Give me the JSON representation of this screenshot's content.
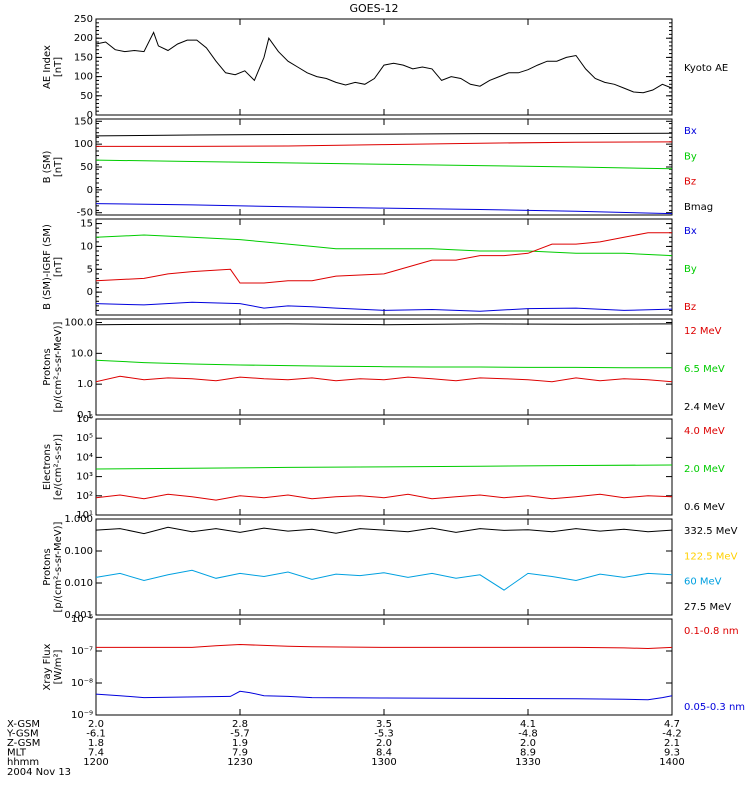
{
  "title": "GOES-12",
  "date": "2004 Nov 13",
  "colors": {
    "black": "#000000",
    "red": "#dd0000",
    "green": "#00cc00",
    "blue": "#0000dd",
    "yellow": "#ffd000",
    "cyan": "#00a0e0"
  },
  "time_axis": {
    "ticks": [
      "1200",
      "1230",
      "1300",
      "1330",
      "1400"
    ],
    "rows": [
      {
        "label": "X-GSM",
        "values": [
          "2.0",
          "2.8",
          "3.5",
          "4.1",
          "4.7"
        ]
      },
      {
        "label": "Y-GSM",
        "values": [
          "-6.1",
          "-5.7",
          "-5.3",
          "-4.8",
          "-4.2"
        ]
      },
      {
        "label": "Z-GSM",
        "values": [
          "1.8",
          "1.9",
          "2.0",
          "2.0",
          "2.1"
        ]
      },
      {
        "label": "MLT",
        "values": [
          "7.4",
          "7.9",
          "8.4",
          "8.9",
          "9.3"
        ]
      },
      {
        "label": "hhmm",
        "values": [
          "1200",
          "1230",
          "1300",
          "1330",
          "1400"
        ]
      }
    ]
  },
  "chart_data": [
    {
      "type": "line",
      "ylabel": [
        "AE Index",
        "[nT]"
      ],
      "ylim": [
        0,
        250
      ],
      "scale": "linear",
      "ticks": [
        "0",
        "50",
        "100",
        "150",
        "200",
        "250"
      ],
      "tick_values": [
        0,
        50,
        100,
        150,
        200,
        250
      ],
      "series": [
        {
          "name": "Kyoto AE",
          "color": "#000000",
          "x": [
            0,
            2,
            4,
            6,
            8,
            10,
            12,
            13,
            15,
            17,
            19,
            21,
            23,
            25,
            27,
            29,
            31,
            33,
            35,
            36,
            38,
            40,
            42,
            44,
            46,
            48,
            50,
            52,
            54,
            56,
            58,
            60,
            62,
            64,
            66,
            68,
            70,
            72,
            74,
            76,
            78,
            80,
            82,
            84,
            86,
            88,
            90,
            92,
            94,
            96,
            98,
            100,
            102,
            104,
            106,
            108,
            110,
            112,
            114,
            116,
            118,
            120
          ],
          "y": [
            185,
            190,
            170,
            165,
            168,
            165,
            215,
            180,
            168,
            185,
            195,
            195,
            175,
            140,
            110,
            105,
            115,
            90,
            150,
            200,
            165,
            140,
            125,
            110,
            100,
            95,
            85,
            78,
            85,
            80,
            95,
            130,
            135,
            130,
            120,
            125,
            120,
            90,
            100,
            95,
            80,
            75,
            90,
            100,
            110,
            110,
            118,
            130,
            140,
            140,
            150,
            155,
            120,
            95,
            85,
            80,
            70,
            60,
            58,
            65,
            80,
            70
          ]
        }
      ]
    },
    {
      "type": "line",
      "ylabel": [
        "B (SM)",
        "[nT]"
      ],
      "ylim": [
        -55,
        155
      ],
      "scale": "linear",
      "ticks": [
        "-50",
        "0",
        "50",
        "100",
        "150"
      ],
      "tick_values": [
        -50,
        0,
        50,
        100,
        150
      ],
      "series": [
        {
          "name": "Bx",
          "color": "#0000dd",
          "x": [
            0,
            20,
            40,
            60,
            80,
            100,
            120
          ],
          "y": [
            -30,
            -33,
            -37,
            -40,
            -43,
            -47,
            -52
          ]
        },
        {
          "name": "By",
          "color": "#00cc00",
          "x": [
            0,
            20,
            40,
            60,
            80,
            100,
            120
          ],
          "y": [
            65,
            62,
            59,
            56,
            53,
            50,
            46
          ]
        },
        {
          "name": "Bz",
          "color": "#dd0000",
          "x": [
            0,
            20,
            40,
            60,
            80,
            100,
            120
          ],
          "y": [
            95,
            95,
            96,
            99,
            102,
            104,
            105
          ]
        },
        {
          "name": "Bmag",
          "color": "#000000",
          "x": [
            0,
            20,
            40,
            60,
            80,
            100,
            120
          ],
          "y": [
            118,
            120,
            121,
            122,
            123,
            123,
            124
          ]
        }
      ]
    },
    {
      "type": "line",
      "ylabel": [
        "B (SM)-IGRF (SM)",
        "[nT]"
      ],
      "ylim": [
        -5,
        16
      ],
      "scale": "linear",
      "ticks": [
        "0",
        "5",
        "10",
        "15"
      ],
      "tick_values": [
        0,
        5,
        10,
        15
      ],
      "series": [
        {
          "name": "Bx",
          "color": "#0000dd",
          "x": [
            0,
            10,
            20,
            30,
            35,
            40,
            45,
            50,
            60,
            70,
            80,
            90,
            100,
            110,
            120
          ],
          "y": [
            -2.5,
            -2.8,
            -2.2,
            -2.5,
            -3.5,
            -3.0,
            -3.2,
            -3.5,
            -4.0,
            -3.8,
            -4.2,
            -3.6,
            -3.5,
            -4.0,
            -3.7
          ]
        },
        {
          "name": "By",
          "color": "#00cc00",
          "x": [
            0,
            10,
            20,
            30,
            35,
            40,
            45,
            50,
            60,
            70,
            80,
            90,
            100,
            110,
            120
          ],
          "y": [
            12,
            12.5,
            12,
            11.5,
            11,
            10.5,
            10,
            9.5,
            9.5,
            9.5,
            9,
            9,
            8.5,
            8.5,
            8
          ]
        },
        {
          "name": "Bz",
          "color": "#dd0000",
          "x": [
            0,
            10,
            15,
            20,
            28,
            30,
            35,
            40,
            45,
            50,
            60,
            65,
            70,
            75,
            80,
            85,
            90,
            95,
            100,
            105,
            110,
            115,
            120
          ],
          "y": [
            2.5,
            3,
            4,
            4.5,
            5,
            2,
            2,
            2.5,
            2.5,
            3.5,
            4,
            5.5,
            7,
            7,
            8,
            8,
            8.5,
            10.5,
            10.5,
            11,
            12,
            13,
            13
          ]
        }
      ]
    },
    {
      "type": "line",
      "ylabel": [
        "Protons",
        "[p/(cm²-s-sr-MeV)]"
      ],
      "ylim": [
        0.1,
        130
      ],
      "scale": "log",
      "ticks": [
        "0.1",
        "1.0",
        "10.0",
        "100.0"
      ],
      "tick_values": [
        0.1,
        1,
        10,
        100
      ],
      "series": [
        {
          "name": "12 MeV",
          "color": "#dd0000",
          "x": [
            0,
            5,
            10,
            15,
            20,
            25,
            30,
            35,
            40,
            45,
            50,
            55,
            60,
            65,
            70,
            75,
            80,
            85,
            90,
            95,
            100,
            105,
            110,
            115,
            120
          ],
          "y": [
            1.2,
            1.8,
            1.4,
            1.6,
            1.5,
            1.3,
            1.7,
            1.5,
            1.4,
            1.6,
            1.3,
            1.5,
            1.4,
            1.7,
            1.5,
            1.3,
            1.6,
            1.5,
            1.4,
            1.2,
            1.6,
            1.3,
            1.5,
            1.4,
            1.2
          ]
        },
        {
          "name": "6.5 MeV",
          "color": "#00cc00",
          "x": [
            0,
            10,
            20,
            30,
            40,
            50,
            60,
            70,
            80,
            90,
            100,
            110,
            120
          ],
          "y": [
            6,
            5,
            4.5,
            4.2,
            4,
            3.8,
            3.7,
            3.6,
            3.6,
            3.5,
            3.5,
            3.4,
            3.4
          ]
        },
        {
          "name": "2.4 MeV",
          "color": "#000000",
          "x": [
            0,
            20,
            40,
            60,
            80,
            100,
            120
          ],
          "y": [
            85,
            88,
            90,
            85,
            90,
            88,
            90
          ]
        }
      ]
    },
    {
      "type": "line",
      "ylabel": [
        "Electrons",
        "[e/(cm²-s-sr)]"
      ],
      "ylim": [
        10,
        1000000
      ],
      "scale": "log",
      "ticks": [
        "10¹",
        "10²",
        "10³",
        "10⁴",
        "10⁵",
        "10⁶"
      ],
      "tick_values": [
        10,
        100,
        1000,
        10000,
        100000,
        1000000
      ],
      "series": [
        {
          "name": "4.0 MeV",
          "color": "#dd0000",
          "x": [
            0,
            5,
            10,
            15,
            20,
            25,
            30,
            35,
            40,
            45,
            50,
            55,
            60,
            65,
            70,
            75,
            80,
            85,
            90,
            95,
            100,
            105,
            110,
            115,
            120
          ],
          "y": [
            80,
            110,
            70,
            120,
            90,
            60,
            100,
            80,
            110,
            70,
            90,
            100,
            80,
            120,
            70,
            90,
            110,
            80,
            100,
            70,
            90,
            120,
            80,
            100,
            90
          ]
        },
        {
          "name": "2.0 MeV",
          "color": "#00cc00",
          "x": [
            0,
            20,
            40,
            60,
            80,
            100,
            120
          ],
          "y": [
            2500,
            2700,
            3000,
            3200,
            3500,
            3800,
            4000
          ]
        },
        {
          "name": "0.6 MeV",
          "color": "#000000",
          "x": [
            0,
            20,
            40,
            60,
            80,
            100,
            120
          ],
          "y": [
            1000000,
            1000000,
            1000000,
            1000000,
            1000000,
            1000000,
            1000000
          ]
        }
      ]
    },
    {
      "type": "line",
      "ylabel": [
        "Protons",
        "[p/(cm²-s-sr-MeV)]"
      ],
      "ylim": [
        0.001,
        1
      ],
      "scale": "log",
      "ticks": [
        "0.001",
        "0.010",
        "0.100",
        "1.000"
      ],
      "tick_values": [
        0.001,
        0.01,
        0.1,
        1
      ],
      "series": [
        {
          "name": "332.5 MeV",
          "color": "#000000",
          "x": [
            0,
            5,
            10,
            15,
            20,
            25,
            30,
            35,
            40,
            45,
            50,
            55,
            60,
            65,
            70,
            75,
            80,
            85,
            90,
            95,
            100,
            105,
            110,
            115,
            120
          ],
          "y": [
            0.45,
            0.5,
            0.35,
            0.55,
            0.4,
            0.5,
            0.38,
            0.52,
            0.42,
            0.48,
            0.36,
            0.5,
            0.45,
            0.4,
            0.52,
            0.38,
            0.5,
            0.44,
            0.46,
            0.4,
            0.5,
            0.42,
            0.48,
            0.4,
            0.45
          ]
        },
        {
          "name": "122.5 MeV",
          "color": "#ffd000",
          "x": [],
          "y": []
        },
        {
          "name": "60 MeV",
          "color": "#00a0e0",
          "x": [
            0,
            5,
            10,
            15,
            20,
            25,
            30,
            35,
            40,
            45,
            50,
            55,
            60,
            65,
            70,
            75,
            80,
            85,
            90,
            95,
            100,
            105,
            110,
            115,
            120
          ],
          "y": [
            0.015,
            0.02,
            0.012,
            0.018,
            0.025,
            0.014,
            0.02,
            0.016,
            0.022,
            0.013,
            0.019,
            0.017,
            0.021,
            0.015,
            0.02,
            0.014,
            0.018,
            0.006,
            0.02,
            0.016,
            0.012,
            0.019,
            0.015,
            0.02,
            0.018
          ]
        },
        {
          "name": "27.5 MeV",
          "color": "#000000",
          "x": [],
          "y": []
        }
      ]
    },
    {
      "type": "line",
      "ylabel": [
        "Xray Flux",
        "[W/m²]"
      ],
      "ylim": [
        1e-09,
        1e-06
      ],
      "scale": "log",
      "ticks": [
        "10⁻⁹",
        "10⁻⁸",
        "10⁻⁷",
        "10⁻⁶"
      ],
      "tick_values": [
        1e-09,
        1e-08,
        1e-07,
        1e-06
      ],
      "series": [
        {
          "name": "0.1-0.8 nm",
          "color": "#dd0000",
          "x": [
            0,
            20,
            25,
            30,
            35,
            40,
            45,
            60,
            80,
            100,
            110,
            115,
            120
          ],
          "y": [
            1.3e-07,
            1.3e-07,
            1.45e-07,
            1.6e-07,
            1.5e-07,
            1.4e-07,
            1.35e-07,
            1.3e-07,
            1.3e-07,
            1.3e-07,
            1.25e-07,
            1.2e-07,
            1.3e-07
          ]
        },
        {
          "name": "0.05-0.3 nm",
          "color": "#0000dd",
          "x": [
            0,
            5,
            10,
            28,
            30,
            32,
            35,
            40,
            45,
            60,
            80,
            100,
            110,
            115,
            118,
            120
          ],
          "y": [
            4.5e-09,
            4e-09,
            3.5e-09,
            3.8e-09,
            5.5e-09,
            5e-09,
            4e-09,
            3.8e-09,
            3.5e-09,
            3.4e-09,
            3.3e-09,
            3.2e-09,
            3.1e-09,
            3e-09,
            3.5e-09,
            4e-09
          ]
        }
      ]
    }
  ]
}
